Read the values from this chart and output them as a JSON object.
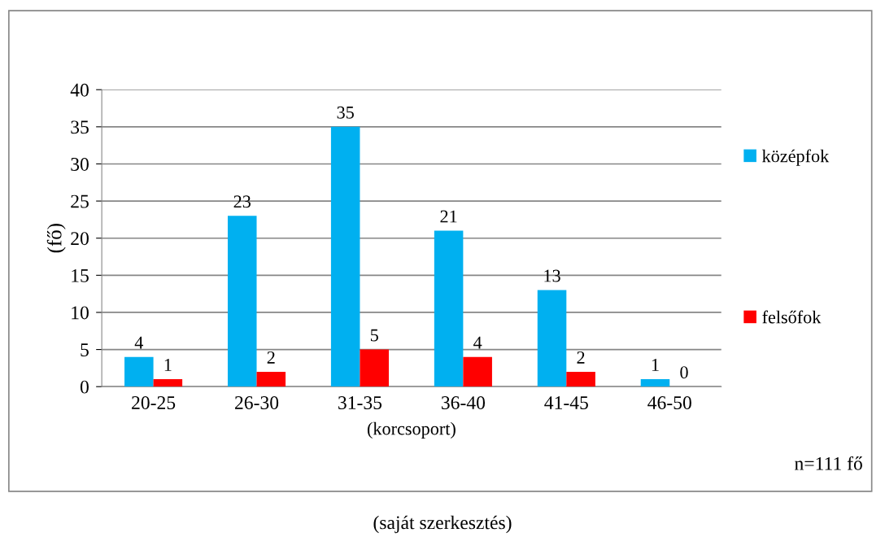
{
  "chart_data": {
    "type": "bar",
    "xlabel": "(korcsoport)",
    "ylabel": "(fő)",
    "categories": [
      "20-25",
      "26-30",
      "31-35",
      "36-40",
      "41-45",
      "46-50"
    ],
    "series": [
      {
        "name": "középfok",
        "color": "#00b0f0",
        "values": [
          4,
          23,
          35,
          21,
          13,
          1
        ]
      },
      {
        "name": "felsőfok",
        "color": "#ff0000",
        "values": [
          1,
          2,
          5,
          4,
          2,
          0
        ]
      }
    ],
    "ylim": [
      0,
      40
    ],
    "yticks": [
      0,
      5,
      10,
      15,
      20,
      25,
      30,
      35,
      40
    ],
    "grid": "y",
    "legend": "right",
    "data_labels": true,
    "annotations": [
      "n=111 fő",
      "(saját szerkesztés)"
    ]
  }
}
